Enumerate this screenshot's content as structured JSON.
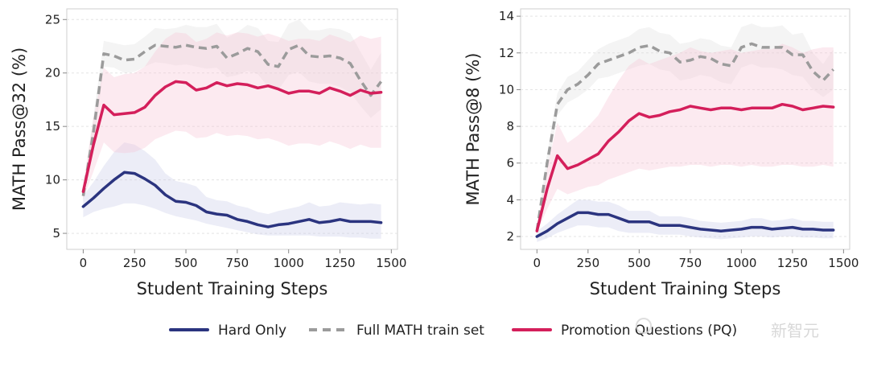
{
  "chart_data": [
    {
      "type": "line",
      "xlabel": "Student Training Steps",
      "ylabel": "MATH Pass@32 (%)",
      "xlim": [
        -80,
        1530
      ],
      "ylim": [
        3.5,
        26
      ],
      "xticks": [
        0,
        250,
        500,
        750,
        1000,
        1250,
        1500
      ],
      "yticks": [
        5,
        10,
        15,
        20,
        25
      ],
      "series": [
        {
          "name": "Hard Only",
          "key": "hard",
          "x": [
            0,
            50,
            100,
            150,
            200,
            250,
            300,
            350,
            400,
            450,
            500,
            550,
            600,
            650,
            700,
            750,
            800,
            850,
            900,
            950,
            1000,
            1050,
            1100,
            1150,
            1200,
            1250,
            1300,
            1350,
            1400,
            1450
          ],
          "y": [
            7.5,
            8.3,
            9.2,
            10.0,
            10.7,
            10.6,
            10.1,
            9.5,
            8.6,
            8.0,
            7.9,
            7.6,
            7.0,
            6.8,
            6.7,
            6.3,
            6.1,
            5.8,
            5.6,
            5.8,
            5.9,
            6.1,
            6.3,
            6.0,
            6.1,
            6.3,
            6.1,
            6.1,
            6.1,
            6.0
          ],
          "lower": [
            6.5,
            7.0,
            7.3,
            7.5,
            7.8,
            7.8,
            7.6,
            7.3,
            6.9,
            6.6,
            6.4,
            6.2,
            5.9,
            5.7,
            5.5,
            5.3,
            5.1,
            4.9,
            4.8,
            4.8,
            4.8,
            4.8,
            4.8,
            4.7,
            4.7,
            4.7,
            4.6,
            4.6,
            4.5,
            4.5
          ],
          "upper": [
            8.5,
            9.8,
            11.3,
            12.6,
            13.5,
            13.3,
            12.7,
            11.9,
            10.6,
            9.9,
            9.7,
            9.4,
            8.4,
            8.1,
            8.0,
            7.6,
            7.4,
            7.0,
            6.8,
            7.1,
            7.3,
            7.5,
            7.9,
            7.5,
            7.6,
            7.9,
            7.8,
            7.7,
            7.8,
            7.7
          ]
        },
        {
          "name": "Full MATH train set",
          "key": "full",
          "x": [
            0,
            50,
            100,
            150,
            200,
            250,
            300,
            350,
            400,
            450,
            500,
            550,
            600,
            650,
            700,
            750,
            800,
            850,
            900,
            950,
            1000,
            1050,
            1100,
            1150,
            1200,
            1250,
            1300,
            1350,
            1400,
            1450
          ],
          "y": [
            8.5,
            14.5,
            21.8,
            21.6,
            21.2,
            21.3,
            22.0,
            22.6,
            22.5,
            22.4,
            22.6,
            22.4,
            22.3,
            22.5,
            21.4,
            21.8,
            22.3,
            22.0,
            20.8,
            20.6,
            22.2,
            22.6,
            21.6,
            21.5,
            21.6,
            21.4,
            20.9,
            19.3,
            17.9,
            19.2
          ],
          "lower": [
            8.0,
            13.0,
            20.6,
            20.5,
            20.0,
            20.1,
            20.6,
            21.0,
            20.9,
            20.7,
            20.8,
            20.6,
            20.4,
            20.5,
            19.6,
            19.8,
            20.2,
            19.9,
            18.7,
            18.4,
            19.8,
            20.1,
            19.2,
            19.0,
            19.0,
            18.7,
            18.2,
            16.9,
            15.8,
            16.6
          ],
          "upper": [
            9.0,
            16.0,
            23.0,
            22.8,
            22.6,
            22.7,
            23.4,
            24.2,
            24.1,
            24.2,
            24.5,
            24.3,
            24.3,
            24.6,
            23.3,
            23.8,
            24.5,
            24.2,
            23.0,
            22.9,
            24.6,
            25.0,
            24.0,
            24.0,
            24.2,
            24.1,
            23.7,
            22.0,
            20.3,
            21.9
          ]
        },
        {
          "name": "Promotion Questions (PQ)",
          "key": "pq",
          "x": [
            0,
            50,
            100,
            150,
            200,
            250,
            300,
            350,
            400,
            450,
            500,
            550,
            600,
            650,
            700,
            750,
            800,
            850,
            900,
            950,
            1000,
            1050,
            1100,
            1150,
            1200,
            1250,
            1300,
            1350,
            1400,
            1450
          ],
          "y": [
            8.9,
            13.3,
            17.0,
            16.1,
            16.2,
            16.3,
            16.8,
            17.9,
            18.7,
            19.2,
            19.1,
            18.4,
            18.6,
            19.1,
            18.8,
            19.0,
            18.9,
            18.6,
            18.8,
            18.5,
            18.1,
            18.3,
            18.3,
            18.1,
            18.6,
            18.3,
            17.9,
            18.4,
            18.1,
            18.2
          ],
          "lower": [
            8.2,
            10.8,
            13.5,
            12.6,
            12.5,
            12.6,
            13.0,
            13.8,
            14.2,
            14.6,
            14.5,
            13.9,
            14.0,
            14.4,
            14.1,
            14.2,
            14.1,
            13.8,
            13.9,
            13.6,
            13.2,
            13.4,
            13.4,
            13.2,
            13.6,
            13.3,
            12.9,
            13.3,
            13.0,
            13.0
          ],
          "upper": [
            9.6,
            15.8,
            20.5,
            19.6,
            19.9,
            20.0,
            20.6,
            22.0,
            23.2,
            23.8,
            23.7,
            22.9,
            23.2,
            23.8,
            23.5,
            23.8,
            23.7,
            23.4,
            23.7,
            23.4,
            23.0,
            23.2,
            23.2,
            23.0,
            23.6,
            23.3,
            22.9,
            23.5,
            23.2,
            23.4
          ]
        }
      ]
    },
    {
      "type": "line",
      "xlabel": "Student Training Steps",
      "ylabel": "MATH Pass@8 (%)",
      "xlim": [
        -80,
        1530
      ],
      "ylim": [
        1.3,
        14.4
      ],
      "xticks": [
        0,
        250,
        500,
        750,
        1000,
        1250,
        1500
      ],
      "yticks": [
        2,
        4,
        6,
        8,
        10,
        12,
        14
      ],
      "series": [
        {
          "name": "Hard Only",
          "key": "hard",
          "x": [
            0,
            50,
            100,
            150,
            200,
            250,
            300,
            350,
            400,
            450,
            500,
            550,
            600,
            650,
            700,
            750,
            800,
            850,
            900,
            950,
            1000,
            1050,
            1100,
            1150,
            1200,
            1250,
            1300,
            1350,
            1400,
            1450
          ],
          "y": [
            2.0,
            2.3,
            2.7,
            3.0,
            3.3,
            3.3,
            3.2,
            3.2,
            3.0,
            2.8,
            2.8,
            2.8,
            2.6,
            2.6,
            2.6,
            2.5,
            2.4,
            2.35,
            2.3,
            2.35,
            2.4,
            2.5,
            2.5,
            2.4,
            2.45,
            2.5,
            2.4,
            2.4,
            2.35,
            2.35
          ],
          "lower": [
            1.7,
            1.9,
            2.2,
            2.4,
            2.6,
            2.6,
            2.5,
            2.5,
            2.3,
            2.2,
            2.2,
            2.2,
            2.1,
            2.1,
            2.1,
            2.0,
            1.95,
            1.9,
            1.85,
            1.9,
            1.95,
            2.0,
            2.0,
            1.95,
            2.0,
            2.0,
            1.95,
            1.95,
            1.9,
            1.9
          ],
          "upper": [
            2.3,
            2.7,
            3.2,
            3.6,
            4.0,
            4.0,
            3.9,
            3.9,
            3.7,
            3.4,
            3.4,
            3.4,
            3.1,
            3.1,
            3.1,
            3.0,
            2.85,
            2.8,
            2.75,
            2.8,
            2.85,
            3.0,
            3.0,
            2.85,
            2.9,
            3.0,
            2.85,
            2.85,
            2.8,
            2.8
          ]
        },
        {
          "name": "Full MATH train set",
          "key": "full",
          "x": [
            0,
            50,
            100,
            150,
            200,
            250,
            300,
            350,
            400,
            450,
            500,
            550,
            600,
            650,
            700,
            750,
            800,
            850,
            900,
            950,
            1000,
            1050,
            1100,
            1150,
            1200,
            1250,
            1300,
            1350,
            1400,
            1450
          ],
          "y": [
            2.3,
            6.0,
            9.2,
            10.0,
            10.3,
            10.8,
            11.4,
            11.6,
            11.8,
            12.0,
            12.3,
            12.4,
            12.1,
            12.0,
            11.5,
            11.6,
            11.8,
            11.7,
            11.4,
            11.3,
            12.3,
            12.5,
            12.3,
            12.3,
            12.3,
            11.9,
            11.9,
            11.0,
            10.5,
            11.1
          ],
          "lower": [
            2.2,
            5.5,
            8.6,
            9.3,
            9.6,
            10.0,
            10.6,
            10.7,
            10.9,
            11.1,
            11.3,
            11.4,
            11.1,
            11.0,
            10.5,
            10.6,
            10.8,
            10.7,
            10.4,
            10.3,
            11.2,
            11.4,
            11.2,
            11.2,
            11.1,
            10.8,
            10.7,
            10.0,
            9.6,
            10.0
          ],
          "upper": [
            2.4,
            6.5,
            9.8,
            10.7,
            11.0,
            11.6,
            12.2,
            12.5,
            12.7,
            12.9,
            13.3,
            13.4,
            13.1,
            13.0,
            12.5,
            12.6,
            12.8,
            12.7,
            12.4,
            12.3,
            13.4,
            13.6,
            13.4,
            13.4,
            13.5,
            13.0,
            13.1,
            12.0,
            11.4,
            12.2
          ]
        },
        {
          "name": "Promotion Questions (PQ)",
          "key": "pq",
          "x": [
            0,
            50,
            100,
            150,
            200,
            250,
            300,
            350,
            400,
            450,
            500,
            550,
            600,
            650,
            700,
            750,
            800,
            850,
            900,
            950,
            1000,
            1050,
            1100,
            1150,
            1200,
            1250,
            1300,
            1350,
            1400,
            1450
          ],
          "y": [
            2.3,
            4.6,
            6.4,
            5.7,
            5.9,
            6.2,
            6.5,
            7.2,
            7.7,
            8.3,
            8.7,
            8.5,
            8.6,
            8.8,
            8.9,
            9.1,
            9.0,
            8.9,
            9.0,
            9.0,
            8.9,
            9.0,
            9.0,
            9.0,
            9.2,
            9.1,
            8.9,
            9.0,
            9.1,
            9.05
          ],
          "lower": [
            2.2,
            3.5,
            4.6,
            4.3,
            4.5,
            4.7,
            4.8,
            5.1,
            5.3,
            5.5,
            5.7,
            5.6,
            5.7,
            5.8,
            5.8,
            5.9,
            5.9,
            5.8,
            5.9,
            5.9,
            5.8,
            5.9,
            5.8,
            5.8,
            5.9,
            5.9,
            5.8,
            5.8,
            5.9,
            5.8
          ],
          "upper": [
            2.4,
            5.7,
            8.2,
            7.1,
            7.5,
            8.0,
            8.6,
            9.6,
            10.5,
            11.3,
            11.7,
            11.4,
            11.6,
            11.8,
            12.0,
            12.3,
            12.1,
            12.0,
            12.1,
            12.2,
            12.0,
            12.1,
            12.2,
            12.2,
            12.5,
            12.3,
            12.0,
            12.2,
            12.3,
            12.3
          ]
        }
      ]
    }
  ],
  "legend": {
    "items": [
      {
        "label": "Hard Only",
        "key": "hard"
      },
      {
        "label": "Full MATH train set",
        "key": "full"
      },
      {
        "label": "Promotion Questions (PQ)",
        "key": "pq"
      }
    ]
  },
  "colors": {
    "hard": "#2b347f",
    "full": "#9b9b9b",
    "pq": "#d41f5b",
    "hard_band": "#c8cce8",
    "full_band": "#d9d9d9",
    "pq_band": "#f6c3d5",
    "grid": "#e3e3e3",
    "axis": "#cfcfcf"
  },
  "watermark": {
    "text": "新智元"
  }
}
